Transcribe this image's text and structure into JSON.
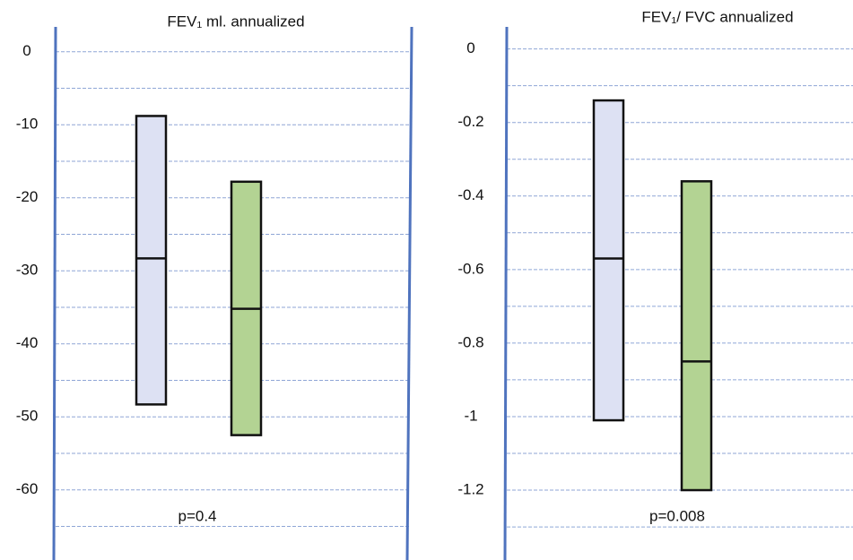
{
  "chart_data": [
    {
      "type": "box",
      "title": "FEV₁ ml. annualized",
      "annotation": "p=0.4",
      "ylim": [
        -69.6,
        3.4
      ],
      "yticks": [
        0,
        -10,
        -20,
        -30,
        -40,
        -50,
        -60
      ],
      "grid_lines": [
        0,
        -5,
        -10,
        -15,
        -20,
        -25,
        -30,
        -35,
        -40,
        -45,
        -50,
        -55,
        -60,
        -65
      ],
      "boxes": [
        {
          "color": "#dde1f3",
          "top": -8.8,
          "median": -28.3,
          "bottom": -48.3
        },
        {
          "color": "#b3d393",
          "top": -17.8,
          "median": -35.2,
          "bottom": -52.5
        }
      ]
    },
    {
      "type": "box",
      "title": "FEV₁/ FVC annualized",
      "annotation": "p=0.008",
      "ylim": [
        -1.39,
        0.06
      ],
      "yticks": [
        0,
        -0.2,
        -0.4,
        -0.6,
        -0.8,
        -1,
        -1.2
      ],
      "grid_lines": [
        0,
        -0.1,
        -0.2,
        -0.3,
        -0.4,
        -0.5,
        -0.6,
        -0.7,
        -0.8,
        -0.9,
        -1,
        -1.1,
        -1.2,
        -1.3
      ],
      "boxes": [
        {
          "color": "#dde1f3",
          "top": -0.14,
          "median": -0.57,
          "bottom": -1.01
        },
        {
          "color": "#b3d393",
          "top": -0.36,
          "median": -0.85,
          "bottom": -1.2
        }
      ]
    }
  ]
}
